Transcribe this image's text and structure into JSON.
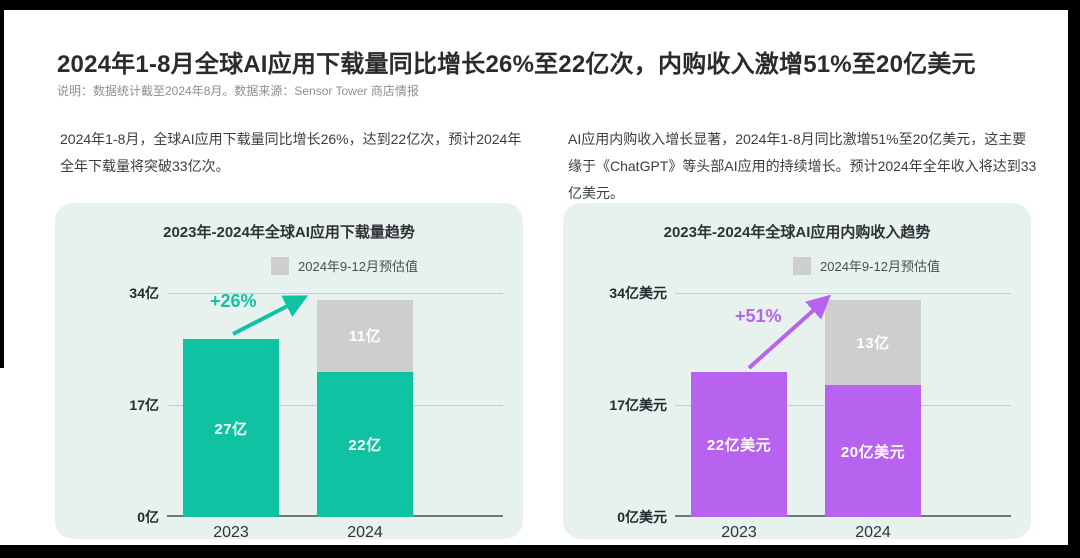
{
  "header": {
    "title": "2024年1-8月全球AI应用下载量同比增长26%至22亿次，内购收入激增51%至20亿美元",
    "note": "说明：数据统计截至2024年8月。数据来源：Sensor Tower 商店情报"
  },
  "summary": {
    "downloads_text": "2024年1-8月，全球AI应用下载量同比增长26%，达到22亿次，预计2024年全年下载量将突破33亿次。",
    "revenue_text": "AI应用内购收入增长显著，2024年1-8月同比激增51%至20亿美元，这主要缘于《ChatGPT》等头部AI应用的持续增长。预计2024年全年收入将达到33亿美元。"
  },
  "colors": {
    "teal": "#0fc3a2",
    "purple": "#b763f0",
    "estimate_gray": "#cecece",
    "card_background": "#e7f2ef"
  },
  "chart_data": [
    {
      "type": "bar",
      "stacked": true,
      "title": "2023年-2024年全球AI应用下载量趋势",
      "categories": [
        "2023",
        "2024"
      ],
      "series": [
        {
          "name": "actual",
          "color": "#0fc3a2",
          "values": [
            27,
            22
          ],
          "labels": [
            "27亿",
            "22亿"
          ]
        },
        {
          "name": "estimate",
          "color": "#cecece",
          "values": [
            0,
            11
          ],
          "labels": [
            "",
            "11亿"
          ]
        }
      ],
      "legend": [
        "2024年9-12月预估值"
      ],
      "legend_position": "top",
      "growth_annotation": "+26%",
      "accent_color": "#0fc3a2",
      "ylim": [
        0,
        34
      ],
      "yticks": [
        {
          "value": 0,
          "label": "0亿"
        },
        {
          "value": 17,
          "label": "17亿"
        },
        {
          "value": 34,
          "label": "34亿"
        }
      ],
      "grid": true
    },
    {
      "type": "bar",
      "stacked": true,
      "title": "2023年-2024年全球AI应用内购收入趋势",
      "categories": [
        "2023",
        "2024"
      ],
      "series": [
        {
          "name": "actual",
          "color": "#b763f0",
          "values": [
            22,
            20
          ],
          "labels": [
            "22亿美元",
            "20亿美元"
          ]
        },
        {
          "name": "estimate",
          "color": "#cecece",
          "values": [
            0,
            13
          ],
          "labels": [
            "",
            "13亿"
          ]
        }
      ],
      "legend": [
        "2024年9-12月预估值"
      ],
      "legend_position": "top",
      "growth_annotation": "+51%",
      "accent_color": "#b763f0",
      "ylim": [
        0,
        34
      ],
      "yticks": [
        {
          "value": 0,
          "label": "0亿美元"
        },
        {
          "value": 17,
          "label": "17亿美元"
        },
        {
          "value": 34,
          "label": "34亿美元"
        }
      ],
      "grid": true
    }
  ]
}
